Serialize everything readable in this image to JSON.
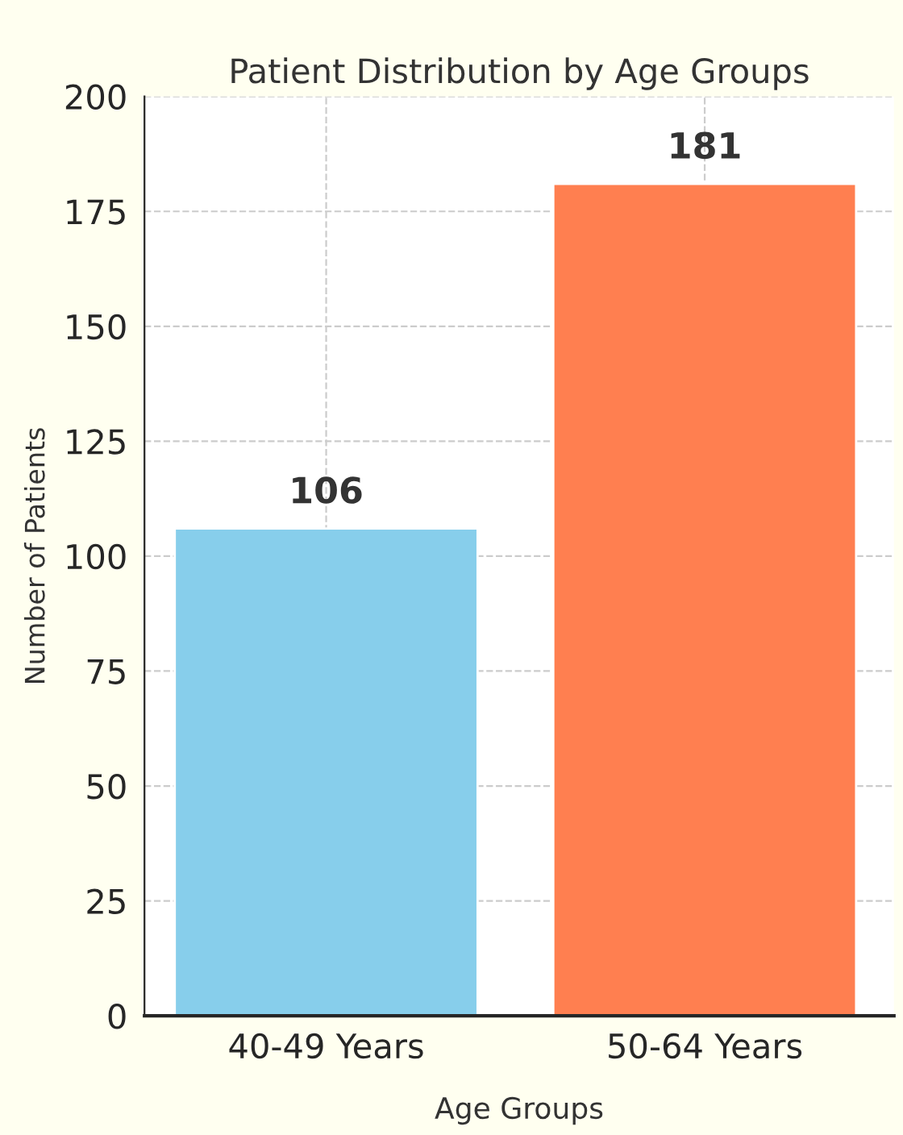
{
  "chart_data": {
    "type": "bar",
    "title": "Patient Distribution by Age Groups",
    "xlabel": "Age Groups",
    "ylabel": "Number of Patients",
    "categories": [
      "40-49 Years",
      "50-64 Years"
    ],
    "values": [
      106,
      181
    ],
    "colors": [
      "#87ceeb",
      "#ff7f50"
    ],
    "ylim": [
      0,
      200
    ],
    "yticks": [
      0,
      25,
      50,
      75,
      100,
      125,
      150,
      175,
      200
    ],
    "grid": true,
    "data_labels": true
  }
}
